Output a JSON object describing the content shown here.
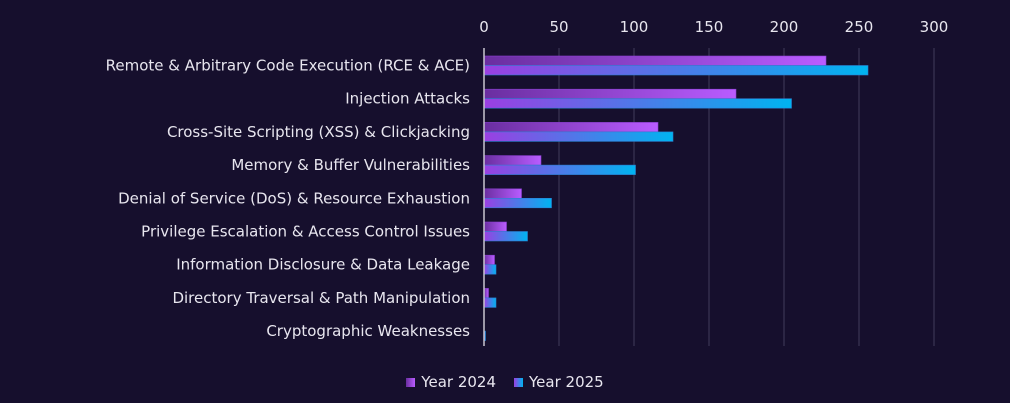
{
  "chart_data": {
    "type": "bar",
    "orientation": "horizontal",
    "title": "",
    "xlabel": "",
    "ylabel": "",
    "xlim": [
      0,
      300
    ],
    "xticks": [
      0,
      50,
      100,
      150,
      200,
      250,
      300
    ],
    "grid": true,
    "legend_position": "bottom",
    "categories": [
      "Remote & Arbitrary Code Execution (RCE & ACE)",
      "Injection Attacks",
      "Cross-Site Scripting (XSS) & Clickjacking",
      "Memory & Buffer Vulnerabilities",
      "Denial of Service (DoS) & Resource Exhaustion",
      "Privilege Escalation & Access Control Issues",
      "Information Disclosure & Data Leakage",
      "Directory Traversal & Path Manipulation",
      "Cryptographic Weaknesses"
    ],
    "series": [
      {
        "name": "Year 2024",
        "values": [
          228,
          168,
          116,
          38,
          25,
          15,
          7,
          3,
          0
        ],
        "color_start": "#6a2ea0",
        "color_end": "#b95cff"
      },
      {
        "name": "Year 2025",
        "values": [
          256,
          205,
          126,
          101,
          45,
          29,
          8,
          8,
          1
        ],
        "color_start": "#9b3fe2",
        "color_end": "#00b4f0"
      }
    ]
  },
  "colors": {
    "background": "#160f2d",
    "grid": "#3a3553",
    "axis": "#c8c6d0",
    "text": "#e8e6ef"
  }
}
